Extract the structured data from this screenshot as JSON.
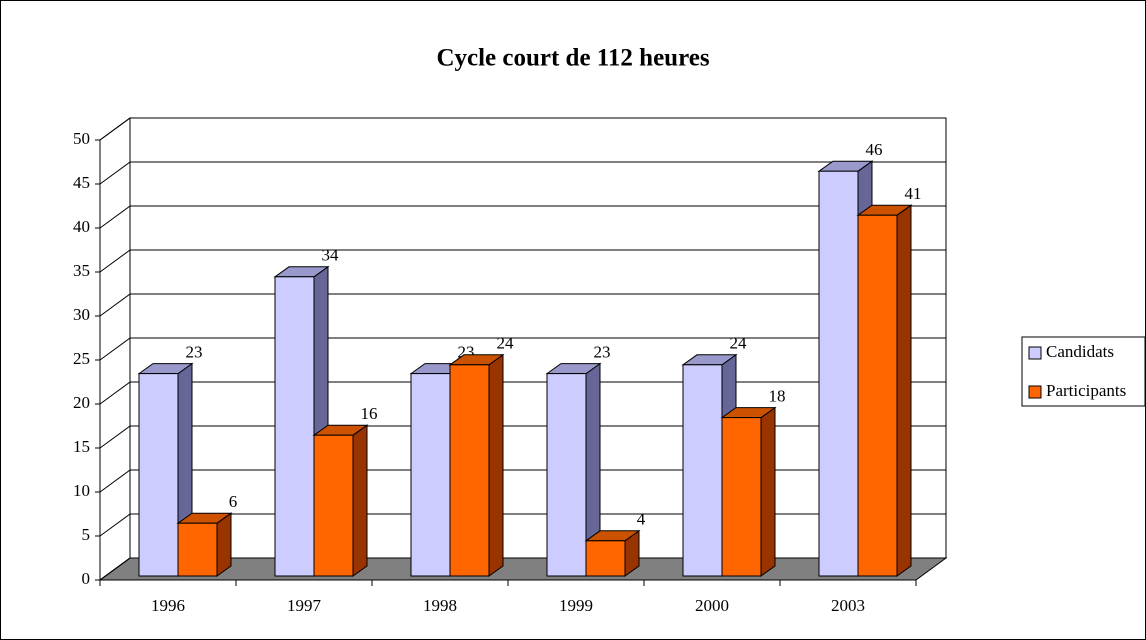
{
  "chart_data": {
    "type": "bar3d",
    "title": "Cycle court de 112 heures",
    "categories": [
      "1996",
      "1997",
      "1998",
      "1999",
      "2000",
      "2003"
    ],
    "series": [
      {
        "name": "Candidats",
        "color": "#ccccff",
        "values": [
          23,
          34,
          23,
          23,
          24,
          46
        ]
      },
      {
        "name": "Participants",
        "color": "#ff6600",
        "values": [
          6,
          16,
          24,
          4,
          18,
          41
        ]
      }
    ],
    "ylim": [
      0,
      50
    ],
    "yticks": [
      0,
      5,
      10,
      15,
      20,
      25,
      30,
      35,
      40,
      45,
      50
    ],
    "grid": true,
    "legend": "right"
  }
}
